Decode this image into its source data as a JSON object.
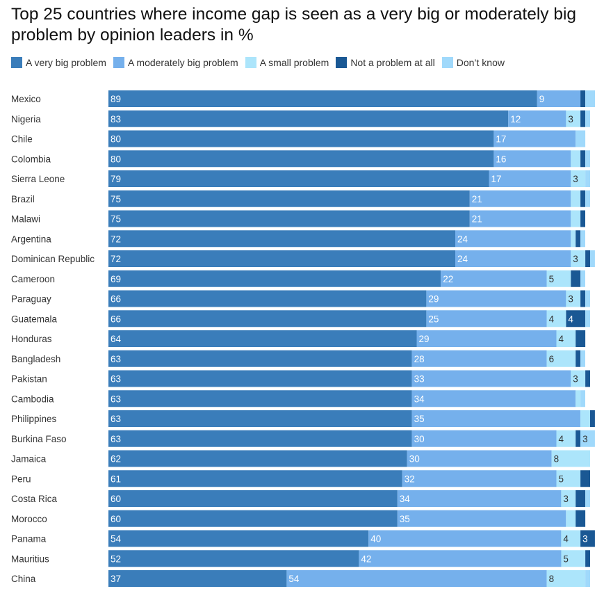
{
  "chart_data": {
    "type": "bar",
    "orientation": "horizontal-stacked",
    "title": "Top 25 countries where income gap is seen as a very big or moderately big problem by opinion leaders in %",
    "xlabel": "",
    "ylabel": "",
    "xlim": [
      0,
      100
    ],
    "grid": false,
    "legend_position": "top",
    "series": [
      {
        "name": "A very big problem",
        "color": "#3A7DBA",
        "text_color": "#ffffff",
        "values": [
          89,
          83,
          80,
          80,
          79,
          75,
          75,
          72,
          72,
          69,
          66,
          66,
          64,
          63,
          63,
          63,
          63,
          63,
          62,
          61,
          60,
          60,
          54,
          52,
          37
        ]
      },
      {
        "name": "A moderately big problem",
        "color": "#75B0EC",
        "text_color": "#ffffff",
        "values": [
          9,
          12,
          17,
          16,
          17,
          21,
          21,
          24,
          24,
          22,
          29,
          25,
          29,
          28,
          33,
          34,
          35,
          30,
          30,
          32,
          34,
          35,
          40,
          42,
          54
        ]
      },
      {
        "name": "A small problem",
        "color": "#ACE5FB",
        "text_color": "#333333",
        "values": [
          0,
          3,
          0,
          2,
          3,
          2,
          2,
          1,
          3,
          5,
          3,
          4,
          4,
          6,
          3,
          1,
          2,
          4,
          8,
          5,
          3,
          2,
          4,
          5,
          8
        ]
      },
      {
        "name": "Not a problem at all",
        "color": "#1A5894",
        "text_color": "#ffffff",
        "values": [
          1,
          1,
          0,
          1,
          0,
          1,
          1,
          1,
          1,
          2,
          1,
          4,
          2,
          1,
          1,
          0,
          1,
          1,
          0,
          2,
          2,
          2,
          3,
          1,
          0
        ]
      },
      {
        "name": "Don’t know",
        "color": "#A0D9FB",
        "text_color": "#333333",
        "values": [
          2,
          1,
          2,
          1,
          1,
          1,
          0,
          1,
          1,
          1,
          1,
          1,
          0,
          1,
          0,
          1,
          0,
          3,
          0,
          0,
          1,
          0,
          0,
          0,
          1
        ]
      }
    ],
    "categories": [
      "Mexico",
      "Nigeria",
      "Chile",
      "Colombia",
      "Sierra Leone",
      "Brazil",
      "Malawi",
      "Argentina",
      "Dominican Republic",
      "Cameroon",
      "Paraguay",
      "Guatemala",
      "Honduras",
      "Bangladesh",
      "Pakistan",
      "Cambodia",
      "Philippines",
      "Burkina Faso",
      "Jamaica",
      "Peru",
      "Costa Rica",
      "Morocco",
      "Panama",
      "Mauritius",
      "China"
    ],
    "label_min_value": 3
  }
}
